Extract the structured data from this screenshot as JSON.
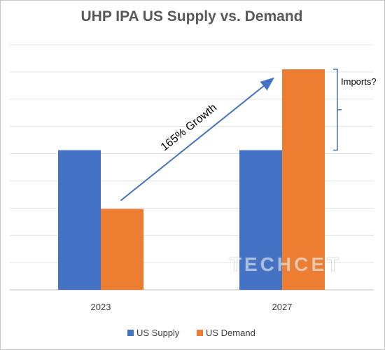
{
  "chart_data": {
    "type": "bar",
    "title": "UHP IPA US Supply vs. Demand",
    "categories": [
      "2023",
      "2027"
    ],
    "series": [
      {
        "name": "US Supply",
        "values": [
          0.57,
          0.57
        ],
        "color": "#4472C4"
      },
      {
        "name": "US Demand",
        "values": [
          0.33,
          0.9
        ],
        "color": "#ED7D31"
      }
    ],
    "ylim": [
      0,
      1.0
    ],
    "y_gridlines": 9,
    "y_axis_labels_shown": false,
    "grid": true,
    "legend": "bottom",
    "annotations": [
      {
        "type": "arrow",
        "text": "165% Growth",
        "from": "US Demand 2023",
        "to": "US Demand 2027"
      },
      {
        "type": "bracket",
        "text": "Imports?",
        "spans": "gap between US Supply and US Demand in 2027"
      }
    ],
    "watermark": "TECHCET"
  }
}
